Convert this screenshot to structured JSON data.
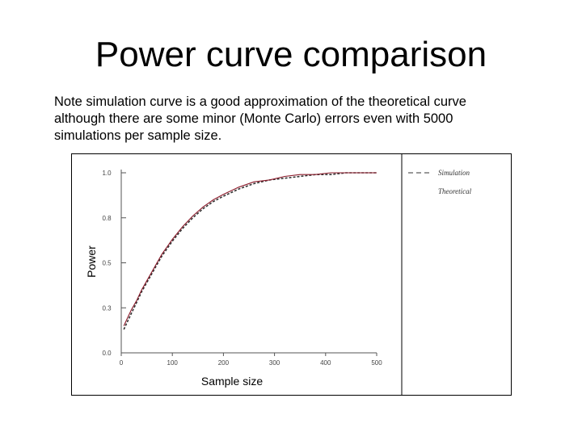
{
  "slide": {
    "title": "Power curve comparison",
    "note_lines": [
      "Note simulation curve is a good approximation of the theoretical curve",
      "although there are some minor (Monte Carlo) errors even with 5000",
      "simulations per sample size."
    ]
  },
  "colors": {
    "simulation": "#333333",
    "theoretical": "#8b1a2a",
    "frame": "#000000",
    "axis": "#555555"
  },
  "chart_data": {
    "type": "line",
    "title": "",
    "xlabel": "Sample size",
    "ylabel": "Power",
    "xlim": [
      0,
      500
    ],
    "ylim": [
      0,
      1
    ],
    "x_ticks": [
      0,
      100,
      200,
      300,
      400,
      500
    ],
    "x_tick_labels": [
      "0",
      "100",
      "200",
      "300",
      "400",
      "500"
    ],
    "y_ticks": [
      0,
      0.25,
      0.5,
      0.75,
      1.0
    ],
    "y_tick_labels": [
      "0.0",
      "0.3",
      "0.5",
      "0.8",
      "1.0"
    ],
    "legend_position": "right",
    "series": [
      {
        "name": "Simulation",
        "style": "dashed",
        "x": [
          5,
          10,
          20,
          30,
          40,
          50,
          60,
          70,
          80,
          90,
          100,
          120,
          140,
          160,
          180,
          200,
          230,
          260,
          290,
          320,
          350,
          380,
          410,
          440,
          470,
          500
        ],
        "y": [
          0.13,
          0.16,
          0.22,
          0.28,
          0.34,
          0.39,
          0.44,
          0.49,
          0.54,
          0.58,
          0.62,
          0.69,
          0.75,
          0.8,
          0.84,
          0.87,
          0.91,
          0.94,
          0.96,
          0.97,
          0.98,
          0.99,
          0.99,
          1.0,
          1.0,
          1.0
        ]
      },
      {
        "name": "Theoretical",
        "style": "solid",
        "x": [
          5,
          10,
          20,
          30,
          40,
          50,
          60,
          70,
          80,
          90,
          100,
          120,
          140,
          160,
          180,
          200,
          230,
          260,
          290,
          320,
          350,
          380,
          410,
          440,
          470,
          500
        ],
        "y": [
          0.15,
          0.18,
          0.24,
          0.29,
          0.35,
          0.4,
          0.45,
          0.5,
          0.55,
          0.59,
          0.63,
          0.7,
          0.76,
          0.81,
          0.85,
          0.88,
          0.92,
          0.95,
          0.96,
          0.98,
          0.99,
          0.99,
          1.0,
          1.0,
          1.0,
          1.0
        ]
      }
    ]
  }
}
